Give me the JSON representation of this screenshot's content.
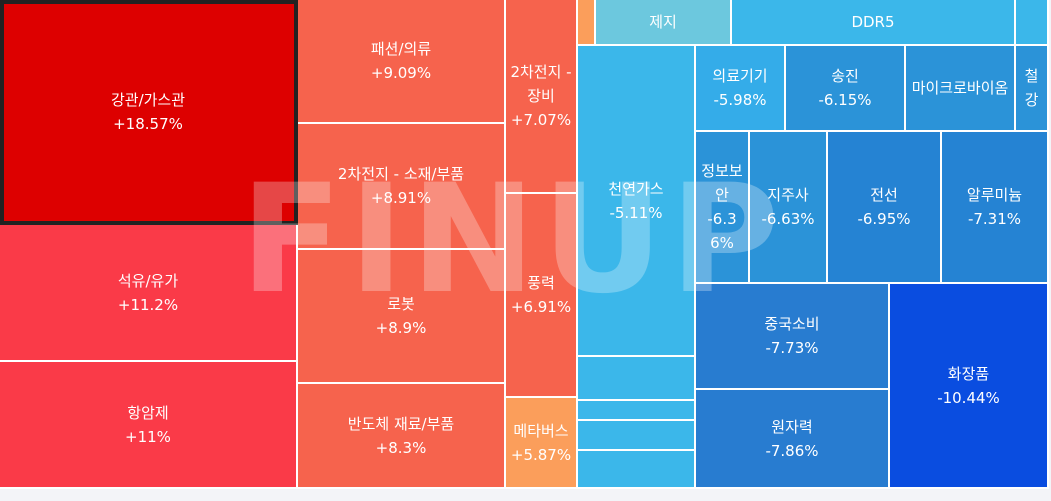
{
  "watermark": "FINUP",
  "chart_data": {
    "type": "treemap",
    "tiles": [
      {
        "id": "gas-pipe",
        "label": "강관/가스관",
        "value": "+18.57%",
        "change": 18.57,
        "color": "#dd0000",
        "selected": true
      },
      {
        "id": "petroleum",
        "label": "석유/유가",
        "value": "+11.2%",
        "change": 11.2,
        "color": "#fa3a48"
      },
      {
        "id": "cancer-drug",
        "label": "항암제",
        "value": "+11%",
        "change": 11.0,
        "color": "#fa3a48"
      },
      {
        "id": "fashion",
        "label": "패션/의류",
        "value": "+9.09%",
        "change": 9.09,
        "color": "#f6634d"
      },
      {
        "id": "battery-material",
        "label": "2차전지 - 소재/부품",
        "value": "+8.91%",
        "change": 8.91,
        "color": "#f6634d"
      },
      {
        "id": "robot",
        "label": "로봇",
        "value": "+8.9%",
        "change": 8.9,
        "color": "#f6634d"
      },
      {
        "id": "semi-material",
        "label": "반도체 재료/부품",
        "value": "+8.3%",
        "change": 8.3,
        "color": "#f6634d"
      },
      {
        "id": "battery-equip",
        "label": "2차전지 - 장비",
        "value": "+7.07%",
        "change": 7.07,
        "color": "#f6634d"
      },
      {
        "id": "wind",
        "label": "풍력",
        "value": "+6.91%",
        "change": 6.91,
        "color": "#f6634d"
      },
      {
        "id": "metaverse",
        "label": "메타버스",
        "value": "+5.87%",
        "change": 5.87,
        "color": "#fb9e5b"
      },
      {
        "id": "orange-small",
        "label": "",
        "value": "",
        "change": null,
        "color": "#fb9e5b"
      },
      {
        "id": "paper",
        "label": "제지",
        "value": "",
        "change": null,
        "color": "#6cc8de"
      },
      {
        "id": "ddr5",
        "label": "DDR5",
        "value": "",
        "change": null,
        "color": "#3bb7ea"
      },
      {
        "id": "top-right-small",
        "label": "",
        "value": "",
        "change": null,
        "color": "#3bb7ea"
      },
      {
        "id": "natural-gas",
        "label": "천연가스",
        "value": "-5.11%",
        "change": -5.11,
        "color": "#3bb7ea"
      },
      {
        "id": "gas-small-1",
        "label": "",
        "value": "",
        "change": null,
        "color": "#3bb7ea"
      },
      {
        "id": "gas-small-2",
        "label": "",
        "value": "",
        "change": null,
        "color": "#3bb7ea"
      },
      {
        "id": "gas-small-3",
        "label": "",
        "value": "",
        "change": null,
        "color": "#3bb7ea"
      },
      {
        "id": "gas-small-4",
        "label": "",
        "value": "",
        "change": null,
        "color": "#3bb7ea"
      },
      {
        "id": "gas-small-5",
        "label": "",
        "value": "",
        "change": null,
        "color": "#3bb7ea"
      },
      {
        "id": "medical-device",
        "label": "의료기기",
        "value": "-5.98%",
        "change": -5.98,
        "color": "#34ace9"
      },
      {
        "id": "transmission",
        "label": "송진",
        "value": "-6.15%",
        "change": -6.15,
        "color": "#2b93d8"
      },
      {
        "id": "microbiome",
        "label": "마이크로바이옴",
        "value": "",
        "change": null,
        "color": "#2b93d8"
      },
      {
        "id": "steel",
        "label": "철강",
        "value": "",
        "change": null,
        "color": "#2b93d8"
      },
      {
        "id": "info-security",
        "label": "정보보안",
        "value": "-6.36%",
        "change": -6.36,
        "color": "#2b93d8"
      },
      {
        "id": "holding",
        "label": "지주사",
        "value": "-6.63%",
        "change": -6.63,
        "color": "#2b93d8"
      },
      {
        "id": "wire",
        "label": "전선",
        "value": "-6.95%",
        "change": -6.95,
        "color": "#2583d3"
      },
      {
        "id": "aluminum",
        "label": "알루미늄",
        "value": "-7.31%",
        "change": -7.31,
        "color": "#2583d3"
      },
      {
        "id": "china-consumer",
        "label": "중국소비",
        "value": "-7.73%",
        "change": -7.73,
        "color": "#287cd0"
      },
      {
        "id": "nuclear",
        "label": "원자력",
        "value": "-7.86%",
        "change": -7.86,
        "color": "#287cd0"
      },
      {
        "id": "cosmetics",
        "label": "화장품",
        "value": "-10.44%",
        "change": -10.44,
        "color": "#0a4de0"
      }
    ]
  }
}
